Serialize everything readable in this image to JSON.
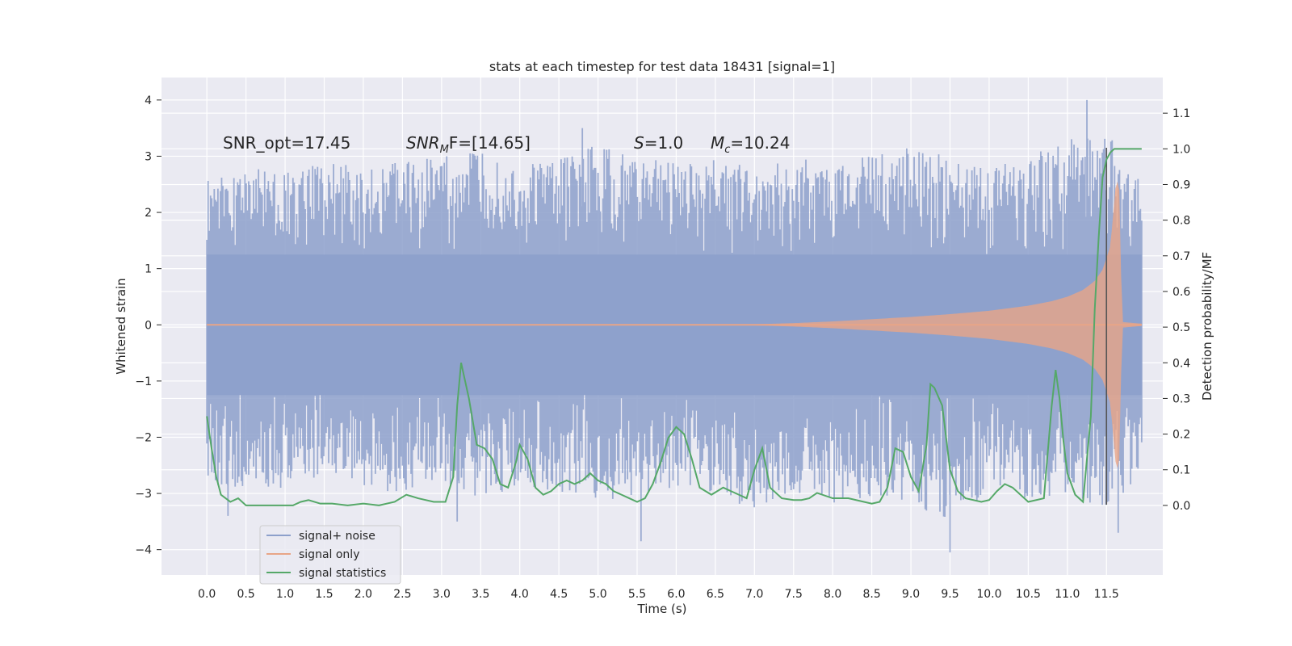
{
  "chart_data": {
    "type": "line",
    "title": "stats at each timestep for test data 18431 [signal=1]",
    "xlabel": "Time (s)",
    "ylabel": "Whitened strain",
    "ylabel_right": "Detection probability/MF",
    "xlim": [
      -0.58,
      12.22
    ],
    "ylim": [
      -4.45,
      4.4
    ],
    "ylim_right": [
      -0.195,
      1.2
    ],
    "x_ticks": [
      "0.0",
      "0.5",
      "1.0",
      "1.5",
      "2.0",
      "2.5",
      "3.0",
      "3.5",
      "4.0",
      "4.5",
      "5.0",
      "5.5",
      "6.0",
      "6.5",
      "7.0",
      "7.5",
      "8.0",
      "8.5",
      "9.0",
      "9.5",
      "10.0",
      "10.5",
      "11.0",
      "11.5"
    ],
    "y_ticks": [
      "4",
      "3",
      "2",
      "1",
      "0",
      "−1",
      "−2",
      "−3",
      "−4"
    ],
    "y_tick_values": [
      4,
      3,
      2,
      1,
      0,
      -1,
      -2,
      -3,
      -4
    ],
    "y_right_ticks": [
      "1.1",
      "1.0",
      "0.9",
      "0.8",
      "0.7",
      "0.6",
      "0.5",
      "0.4",
      "0.3",
      "0.2",
      "0.1",
      "0.0"
    ],
    "y_right_tick_values": [
      1.1,
      1.0,
      0.9,
      0.8,
      0.7,
      0.6,
      0.5,
      0.4,
      0.3,
      0.2,
      0.1,
      0.0
    ],
    "grid": true,
    "legend_position": "lower-left",
    "annotations": {
      "snr_opt": "SNR_opt=17.45",
      "snr_mf_label": "SNR",
      "snr_mf_sub": "M",
      "snr_mf_rest": "F=[14.65]",
      "s_label": "S",
      "s_rest": "=1.0",
      "mc_label": "M",
      "mc_sub": "c",
      "mc_rest": "=10.24"
    },
    "vline_x": 11.5,
    "series": [
      {
        "name": "signal+ noise",
        "color": "#8da0cb",
        "envelope_x": [
          0.0,
          0.5,
          1.0,
          1.5,
          2.0,
          2.5,
          3.0,
          3.5,
          4.0,
          4.5,
          5.0,
          5.5,
          6.0,
          6.5,
          7.0,
          7.5,
          8.0,
          8.5,
          9.0,
          9.5,
          10.0,
          10.5,
          11.0,
          11.5,
          11.95
        ],
        "envelope_upper": [
          2.6,
          2.8,
          2.7,
          2.9,
          2.8,
          2.9,
          3.0,
          3.1,
          2.8,
          3.0,
          3.2,
          3.0,
          2.9,
          3.0,
          2.8,
          3.0,
          2.9,
          3.0,
          3.2,
          3.0,
          2.8,
          3.0,
          3.3,
          3.5,
          2.5
        ],
        "envelope_lower": [
          -2.8,
          -3.0,
          -2.9,
          -2.7,
          -2.9,
          -3.0,
          -2.8,
          -3.1,
          -2.9,
          -3.0,
          -3.2,
          -3.0,
          -2.9,
          -3.0,
          -3.3,
          -3.0,
          -3.2,
          -3.1,
          -3.2,
          -3.5,
          -3.0,
          -3.1,
          -3.0,
          -3.4,
          -2.6
        ],
        "spikes": [
          [
            0.27,
            -3.4
          ],
          [
            3.2,
            -3.5
          ],
          [
            5.55,
            -3.85
          ],
          [
            9.5,
            -4.05
          ],
          [
            11.65,
            -3.7
          ],
          [
            11.25,
            4.0
          ],
          [
            4.8,
            3.5
          ]
        ]
      },
      {
        "name": "signal only",
        "color": "#e8a587",
        "x": [
          0.0,
          7.0,
          7.5,
          8.0,
          8.5,
          9.0,
          9.5,
          10.0,
          10.5,
          10.8,
          11.0,
          11.2,
          11.35,
          11.45,
          11.55,
          11.62,
          11.66,
          11.7,
          11.95
        ],
        "amplitude": [
          0.01,
          0.01,
          0.03,
          0.06,
          0.1,
          0.14,
          0.19,
          0.25,
          0.34,
          0.42,
          0.5,
          0.62,
          0.78,
          0.98,
          1.4,
          2.5,
          2.6,
          0.05,
          0.02
        ]
      },
      {
        "name": "signal statistics",
        "color": "#55a868",
        "x": [
          0.0,
          0.06,
          0.12,
          0.18,
          0.3,
          0.4,
          0.5,
          0.7,
          0.9,
          1.1,
          1.2,
          1.3,
          1.45,
          1.6,
          1.8,
          2.0,
          2.2,
          2.4,
          2.55,
          2.7,
          2.9,
          3.05,
          3.15,
          3.2,
          3.25,
          3.3,
          3.35,
          3.45,
          3.55,
          3.65,
          3.75,
          3.85,
          3.95,
          4.0,
          4.1,
          4.2,
          4.3,
          4.4,
          4.5,
          4.6,
          4.7,
          4.8,
          4.9,
          5.0,
          5.1,
          5.2,
          5.3,
          5.4,
          5.5,
          5.6,
          5.7,
          5.8,
          5.9,
          6.0,
          6.1,
          6.2,
          6.3,
          6.45,
          6.6,
          6.7,
          6.8,
          6.9,
          7.0,
          7.1,
          7.2,
          7.35,
          7.5,
          7.6,
          7.7,
          7.8,
          8.0,
          8.2,
          8.4,
          8.5,
          8.6,
          8.7,
          8.8,
          8.9,
          9.0,
          9.1,
          9.2,
          9.25,
          9.3,
          9.4,
          9.5,
          9.6,
          9.7,
          9.9,
          10.0,
          10.1,
          10.2,
          10.3,
          10.4,
          10.5,
          10.7,
          10.8,
          10.85,
          10.9,
          10.95,
          11.0,
          11.1,
          11.2,
          11.3,
          11.35,
          11.4,
          11.45,
          11.5,
          11.55,
          11.6,
          11.65,
          11.7,
          11.8,
          11.95
        ],
        "y": [
          0.25,
          0.16,
          0.08,
          0.03,
          0.01,
          0.02,
          0.0,
          0.0,
          0.0,
          0.0,
          0.01,
          0.015,
          0.005,
          0.005,
          0.0,
          0.005,
          0.0,
          0.01,
          0.03,
          0.02,
          0.01,
          0.01,
          0.08,
          0.28,
          0.4,
          0.35,
          0.3,
          0.17,
          0.16,
          0.13,
          0.06,
          0.05,
          0.12,
          0.17,
          0.13,
          0.05,
          0.03,
          0.04,
          0.06,
          0.07,
          0.06,
          0.07,
          0.09,
          0.07,
          0.06,
          0.04,
          0.03,
          0.02,
          0.01,
          0.02,
          0.06,
          0.12,
          0.19,
          0.22,
          0.2,
          0.13,
          0.05,
          0.03,
          0.05,
          0.04,
          0.03,
          0.02,
          0.1,
          0.16,
          0.05,
          0.02,
          0.015,
          0.015,
          0.02,
          0.035,
          0.02,
          0.02,
          0.01,
          0.005,
          0.01,
          0.05,
          0.16,
          0.15,
          0.08,
          0.04,
          0.17,
          0.34,
          0.33,
          0.28,
          0.1,
          0.04,
          0.02,
          0.01,
          0.015,
          0.04,
          0.06,
          0.05,
          0.03,
          0.01,
          0.02,
          0.28,
          0.38,
          0.3,
          0.18,
          0.09,
          0.03,
          0.01,
          0.25,
          0.55,
          0.75,
          0.92,
          0.97,
          0.99,
          1.0,
          1.0,
          1.0,
          1.0,
          1.0
        ]
      }
    ]
  }
}
